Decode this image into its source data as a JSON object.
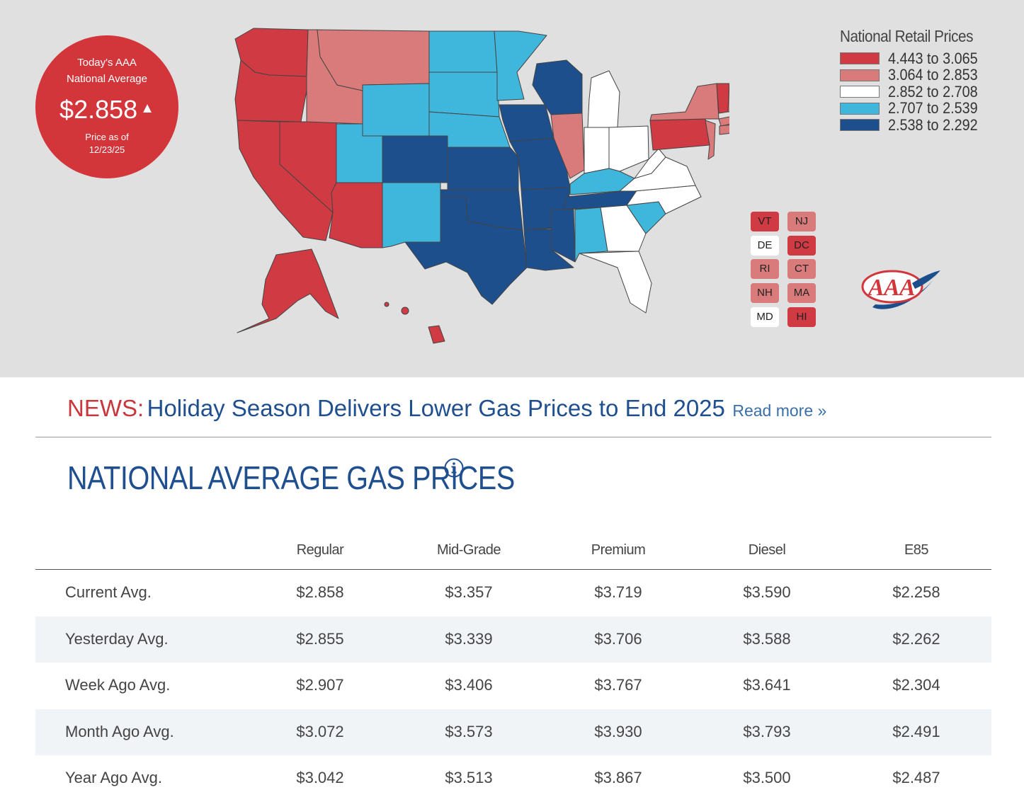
{
  "national_average": {
    "line1": "Today's AAA",
    "line2": "National Average",
    "price": "$2.858",
    "trend": "up",
    "as_of_line1": "Price as of",
    "as_of_line2": "12/23/25"
  },
  "legend": {
    "title": "National Retail Prices",
    "items": [
      {
        "label": "4.443 to 3.065",
        "color": "#cf3a43"
      },
      {
        "label": "3.064 to 2.853",
        "color": "#d97a7b"
      },
      {
        "label": "2.852 to 2.708",
        "color": "#ffffff"
      },
      {
        "label": "2.707 to 2.539",
        "color": "#3fb6dc"
      },
      {
        "label": "2.538 to 2.292",
        "color": "#1d4f8d"
      }
    ]
  },
  "small_states": [
    {
      "code": "VT",
      "tier": 0
    },
    {
      "code": "NJ",
      "tier": 1
    },
    {
      "code": "DE",
      "tier": 2
    },
    {
      "code": "DC",
      "tier": 0
    },
    {
      "code": "RI",
      "tier": 1
    },
    {
      "code": "CT",
      "tier": 1
    },
    {
      "code": "NH",
      "tier": 1
    },
    {
      "code": "MA",
      "tier": 1
    },
    {
      "code": "MD",
      "tier": 2
    },
    {
      "code": "HI",
      "tier": 0
    }
  ],
  "map_icon": "us-states-map",
  "logo_icon": "aaa-logo",
  "news": {
    "label": "NEWS:",
    "headline": "Holiday Season Delivers Lower Gas Prices to End 2025",
    "link_text": "Read more »"
  },
  "section_title": "NATIONAL AVERAGE GAS PRICES",
  "table": {
    "columns": [
      "Regular",
      "Mid-Grade",
      "Premium",
      "Diesel",
      "E85"
    ],
    "rows": [
      {
        "label": "Current Avg.",
        "values": [
          "$2.858",
          "$3.357",
          "$3.719",
          "$3.590",
          "$2.258"
        ]
      },
      {
        "label": "Yesterday Avg.",
        "values": [
          "$2.855",
          "$3.339",
          "$3.706",
          "$3.588",
          "$2.262"
        ]
      },
      {
        "label": "Week Ago Avg.",
        "values": [
          "$2.907",
          "$3.406",
          "$3.767",
          "$3.641",
          "$2.304"
        ]
      },
      {
        "label": "Month Ago Avg.",
        "values": [
          "$3.072",
          "$3.573",
          "$3.930",
          "$3.793",
          "$2.491"
        ]
      },
      {
        "label": "Year Ago Avg.",
        "values": [
          "$3.042",
          "$3.513",
          "$3.867",
          "$3.500",
          "$2.487"
        ]
      }
    ]
  }
}
